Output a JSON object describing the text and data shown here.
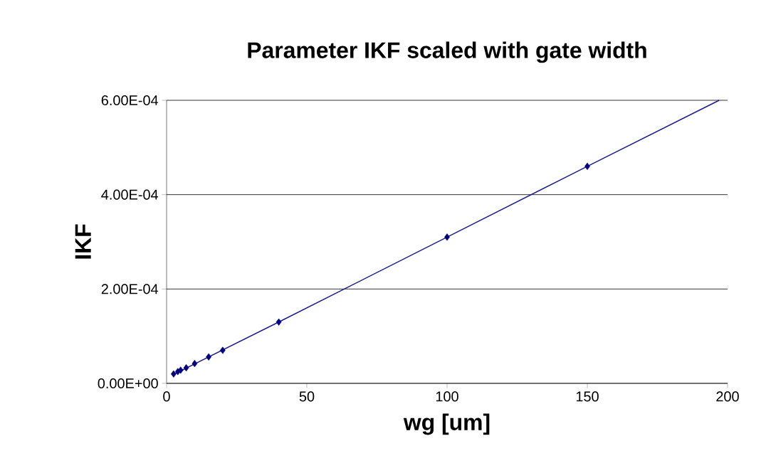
{
  "chart_data": {
    "type": "scatter",
    "title": "Parameter IKF scaled with gate width",
    "xlabel": "wg [um]",
    "ylabel": "IKF",
    "xlim": [
      0,
      200
    ],
    "xticks": [
      0,
      50,
      100,
      150,
      200
    ],
    "ylim": [
      0,
      0.0006
    ],
    "yticks": [
      {
        "value": 0,
        "label": "0.00E+00"
      },
      {
        "value": 0.0002,
        "label": "2.00E-04"
      },
      {
        "value": 0.0004,
        "label": "4.00E-04"
      },
      {
        "value": 0.0006,
        "label": "6.00E-04"
      }
    ],
    "grid": "y",
    "series": [
      {
        "color": "#000080",
        "marker": "diamond",
        "x": [
          2.5,
          4,
          5,
          7,
          10,
          15,
          20,
          40,
          100,
          150
        ],
        "values": [
          2e-05,
          2.5e-05,
          2.8e-05,
          3.3e-05,
          4.2e-05,
          5.6e-05,
          7e-05,
          0.00013,
          0.00031,
          0.00046
        ]
      },
      {
        "type": "line",
        "color": "#1a1a99",
        "marker": "none",
        "line_style": "solid",
        "x": [
          2.5,
          40,
          100,
          150,
          197
        ],
        "values": [
          1.9e-05,
          0.00013,
          0.00031,
          0.00046,
          0.0006
        ]
      }
    ]
  }
}
